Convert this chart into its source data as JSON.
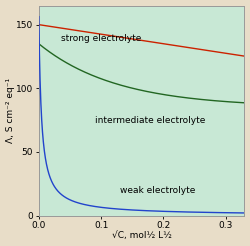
{
  "xlabel": "√C, mol½ L½",
  "ylabel": "Λ, S cm⁻² eq⁻¹",
  "xlim": [
    0,
    0.33
  ],
  "ylim": [
    0,
    165
  ],
  "yticks": [
    0,
    50,
    100,
    150
  ],
  "xticks": [
    0,
    0.1,
    0.2,
    0.3
  ],
  "background_plot": "#c8e8d5",
  "background_outer": "#e8ddc8",
  "strong_color": "#cc2200",
  "intermediate_color": "#226622",
  "weak_color": "#2244cc",
  "label_strong": "strong electrolyte",
  "label_intermediate": "intermediate electrolyte",
  "label_weak": "weak electrolyte",
  "xlabel_fontsize": 6.5,
  "ylabel_fontsize": 6.5,
  "tick_fontsize": 6.5,
  "label_fontsize": 6.5
}
